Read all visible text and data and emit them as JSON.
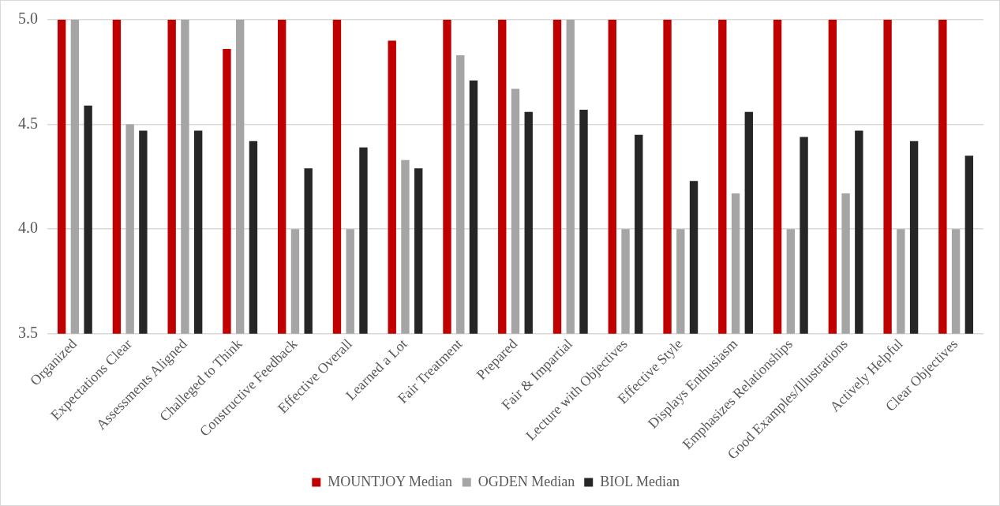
{
  "chart_data": {
    "type": "bar",
    "categories": [
      "Organized",
      "Expectations Clear",
      "Assessments Aligned",
      "Challeged to Think",
      "Constructive Feedback",
      "Effective Overall",
      "Learned a Lot",
      "Fair Treatment",
      "Prepared",
      "Fair & Impartial",
      "Lecture with Objectives",
      "Effective Style",
      "Displays Enthusiasm",
      "Emphasizes Relationships",
      "Good Examples/Illustrations",
      "Actively Helpful",
      "Clear Objectives"
    ],
    "series": [
      {
        "name": "MOUNTJOY Median",
        "color": "#c00000",
        "values": [
          5,
          5,
          5,
          4.86,
          5,
          5,
          4.9,
          5,
          5,
          5,
          5,
          5,
          5,
          5,
          5,
          5,
          5
        ]
      },
      {
        "name": "OGDEN Median",
        "color": "#a5a5a5",
        "values": [
          5,
          4.5,
          5,
          5,
          4,
          4,
          4.33,
          4.83,
          4.67,
          5,
          4,
          4,
          4.17,
          4,
          4.17,
          4,
          4
        ]
      },
      {
        "name": "BIOL Median",
        "color": "#262626",
        "values": [
          4.59,
          4.47,
          4.47,
          4.42,
          4.29,
          4.39,
          4.29,
          4.71,
          4.56,
          4.57,
          4.45,
          4.23,
          4.56,
          4.44,
          4.47,
          4.42,
          4.35
        ]
      }
    ],
    "ylim": [
      3.5,
      5
    ],
    "yticks": [
      {
        "value": 3.5,
        "label": "3.5"
      },
      {
        "value": 4,
        "label": "4.0"
      },
      {
        "value": 4.5,
        "label": "4.5"
      },
      {
        "value": 5,
        "label": "5.0"
      }
    ],
    "grid": "y",
    "legend": "bottom"
  }
}
